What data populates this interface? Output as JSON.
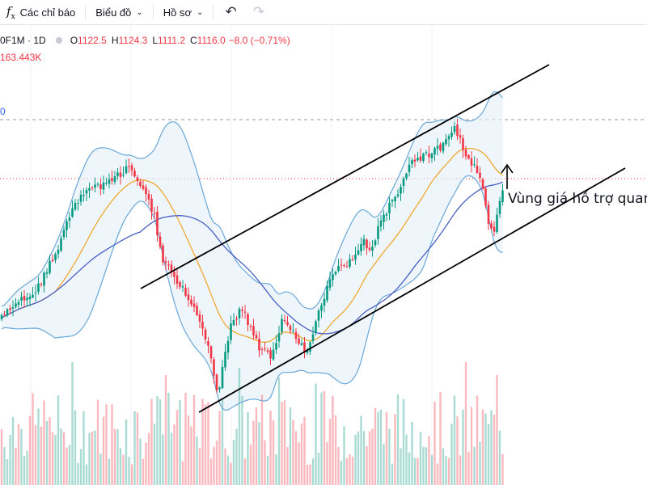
{
  "toolbar": {
    "indicators_label": "Các chỉ báo",
    "chart_type_label": "Biểu đồ",
    "profile_label": "Hồ sơ"
  },
  "legend": {
    "symbol": "0F1M · 1D",
    "open_key": "O",
    "open": "1122.5",
    "high_key": "H",
    "high": "1124.3",
    "low_key": "L",
    "low": "1111.2",
    "close_key": "C",
    "close": "1116.0",
    "change": "−8.0 (−0.71%)",
    "volume": "163.443K",
    "axis_fragment": "0"
  },
  "annotation": "Vùng giá hỗ trợ quan",
  "colors": {
    "up": "#089981",
    "down": "#f23645",
    "upper_band": "#6aa7d8",
    "middle_band": "#f0a830",
    "ma_line": "#4a5fc1",
    "band_fill": "#e3f0fa"
  },
  "icons": {
    "indicators": "function-icon",
    "undo": "undo-icon",
    "redo": "redo-icon"
  }
}
